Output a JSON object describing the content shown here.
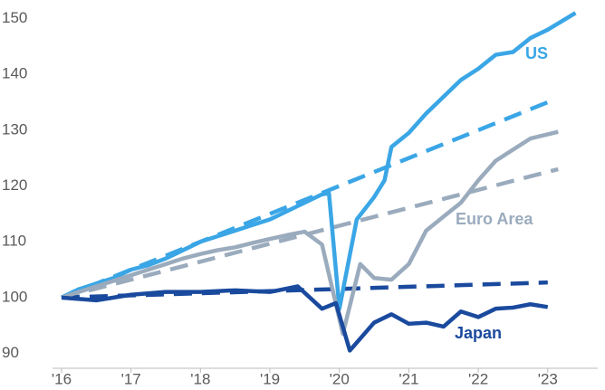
{
  "chart_data": {
    "type": "line",
    "xlim": [
      2015.87,
      2023.72
    ],
    "ylim": [
      87,
      153
    ],
    "xticks": [
      {
        "value": 2016,
        "label": "'16"
      },
      {
        "value": 2017,
        "label": "'17"
      },
      {
        "value": 2018,
        "label": "'18"
      },
      {
        "value": 2019,
        "label": "'19"
      },
      {
        "value": 2020,
        "label": "'20"
      },
      {
        "value": 2021,
        "label": "'21"
      },
      {
        "value": 2022,
        "label": "'22"
      },
      {
        "value": 2023,
        "label": "'23"
      }
    ],
    "yticks": [
      90,
      100,
      110,
      120,
      130,
      140,
      150
    ],
    "grid": false,
    "series": [
      {
        "name": "US",
        "color": "#3aa6e6",
        "dashed": false,
        "x": [
          2016,
          2016.25,
          2016.5,
          2016.75,
          2017,
          2017.25,
          2017.5,
          2017.75,
          2018,
          2018.25,
          2018.5,
          2018.75,
          2019,
          2019.25,
          2019.5,
          2019.75,
          2019.85,
          2020.0,
          2020.25,
          2020.5,
          2020.65,
          2020.75,
          2021,
          2021.25,
          2021.5,
          2021.75,
          2022,
          2022.25,
          2022.5,
          2022.75,
          2023,
          2023.2,
          2023.4
        ],
        "values": [
          100,
          101.5,
          102.5,
          103.5,
          105,
          105.8,
          107,
          108.5,
          110,
          111,
          112,
          113,
          114,
          115.5,
          117,
          118.5,
          118.7,
          98,
          114,
          118,
          121,
          127,
          129.5,
          133,
          136,
          139,
          141,
          143.5,
          144,
          146.5,
          148,
          149.5,
          151
        ]
      },
      {
        "color": "#3aa6e6",
        "dashed": true,
        "x": [
          2016,
          2023
        ],
        "values": [
          100,
          135
        ]
      },
      {
        "name": "Euro Area",
        "color": "#9aabbd",
        "dashed": false,
        "x": [
          2016,
          2016.25,
          2016.5,
          2016.75,
          2017,
          2017.25,
          2017.5,
          2017.75,
          2018,
          2018.25,
          2018.5,
          2018.75,
          2019,
          2019.25,
          2019.5,
          2019.75,
          2020.05,
          2020.3,
          2020.5,
          2020.75,
          2021,
          2021.25,
          2021.5,
          2021.75,
          2022,
          2022.25,
          2022.5,
          2022.75,
          2023.15
        ],
        "values": [
          100,
          101,
          102,
          103,
          104,
          105,
          106,
          107,
          107.8,
          108.5,
          109,
          109.8,
          110.5,
          111.2,
          111.8,
          109.5,
          93.5,
          106,
          103.5,
          103.2,
          106,
          112,
          114.5,
          117,
          121,
          124.5,
          126.5,
          128.5,
          129.7
        ]
      },
      {
        "color": "#9aabbd",
        "dashed": true,
        "x": [
          2016,
          2023.15
        ],
        "values": [
          100,
          123
        ]
      },
      {
        "name": "Japan",
        "color": "#1a4a9e",
        "dashed": false,
        "x": [
          2016,
          2016.5,
          2017,
          2017.5,
          2018,
          2018.5,
          2019,
          2019.4,
          2019.75,
          2019.95,
          2020.15,
          2020.5,
          2020.75,
          2021,
          2021.25,
          2021.5,
          2021.75,
          2022,
          2022.25,
          2022.5,
          2022.75,
          2023.0
        ],
        "values": [
          100,
          99.5,
          100.5,
          101,
          101,
          101.3,
          101,
          102,
          98,
          99,
          90.5,
          95.5,
          97,
          95.3,
          95.5,
          94.8,
          97.5,
          96.5,
          98,
          98.2,
          98.8,
          98.3
        ]
      },
      {
        "color": "#1a4a9e",
        "dashed": true,
        "x": [
          2016,
          2023
        ],
        "values": [
          100,
          102.7
        ]
      }
    ]
  }
}
